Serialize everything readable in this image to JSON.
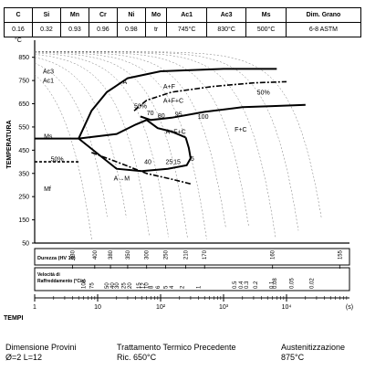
{
  "composition": {
    "headers": [
      "C",
      "Si",
      "Mn",
      "Cr",
      "Ni",
      "Mo",
      "Ac1",
      "Ac3",
      "Ms",
      "Dim. Grano"
    ],
    "values": [
      "0.16",
      "0.32",
      "0.93",
      "0.96",
      "0.98",
      "tr",
      "745°C",
      "830°C",
      "500°C",
      "6-8 ASTM"
    ]
  },
  "footer": {
    "col1_title": "Dimensione Provini",
    "col1_value": "Ø=2  L=12",
    "col2_title": "Trattamento Termico Precedente",
    "col2_value": "Ric. 650°C",
    "col3_title": "Austenitizzazione",
    "col3_value": "875°C"
  },
  "chart_data": {
    "type": "line",
    "title": "",
    "ylabel": "TEMPERATURA",
    "y_unit": "°C",
    "xlabel": "TEMPI",
    "x_unit": "(s)",
    "x_scale": "log",
    "xlim": [
      1,
      100000
    ],
    "ylim": [
      50,
      900
    ],
    "y_ticks": [
      850,
      750,
      650,
      550,
      450,
      350,
      250,
      150,
      50
    ],
    "x_tick_labels": [
      {
        "x": 1,
        "label": "1"
      },
      {
        "x": 10,
        "label": "10"
      },
      {
        "x": 100,
        "label": "10²"
      },
      {
        "x": 1000,
        "label": "10³"
      },
      {
        "x": 10000,
        "label": "10⁴"
      },
      {
        "x": 100000,
        "label": "(s)"
      }
    ],
    "hardness_row": {
      "label": "Durezza (HV 10)",
      "values": [
        {
          "x": 4,
          "label": "430"
        },
        {
          "x": 9,
          "label": "400"
        },
        {
          "x": 16,
          "label": "380"
        },
        {
          "x": 30,
          "label": "350"
        },
        {
          "x": 60,
          "label": "300"
        },
        {
          "x": 120,
          "label": "250"
        },
        {
          "x": 250,
          "label": "210"
        },
        {
          "x": 500,
          "label": "170"
        },
        {
          "x": 6000,
          "label": "160"
        },
        {
          "x": 70000,
          "label": "155"
        }
      ]
    },
    "cooling_rate_row": {
      "label": "Velocità di Raffreddamento (°C/s)",
      "values": [
        {
          "x": 6,
          "label": "100"
        },
        {
          "x": 8,
          "label": "75"
        },
        {
          "x": 14,
          "label": "50"
        },
        {
          "x": 17,
          "label": "40"
        },
        {
          "x": 20,
          "label": "30"
        },
        {
          "x": 26,
          "label": "25"
        },
        {
          "x": 32,
          "label": "20"
        },
        {
          "x": 45,
          "label": "15"
        },
        {
          "x": 52,
          "label": "12"
        },
        {
          "x": 60,
          "label": "10"
        },
        {
          "x": 70,
          "label": "8"
        },
        {
          "x": 90,
          "label": "6"
        },
        {
          "x": 120,
          "label": "5"
        },
        {
          "x": 150,
          "label": "4"
        },
        {
          "x": 220,
          "label": "2"
        },
        {
          "x": 400,
          "label": "1"
        },
        {
          "x": 1500,
          "label": "0.5"
        },
        {
          "x": 1900,
          "label": "0.4"
        },
        {
          "x": 2300,
          "label": "0.3"
        },
        {
          "x": 3200,
          "label": "0.2"
        },
        {
          "x": 5800,
          "label": "0.1"
        },
        {
          "x": 6500,
          "label": "0.08"
        },
        {
          "x": 12000,
          "label": "0.05"
        },
        {
          "x": 25000,
          "label": "0.02"
        }
      ]
    },
    "series": [
      {
        "id": "ferrite_start",
        "style": "solid",
        "points": [
          [
            5,
            500
          ],
          [
            8,
            620
          ],
          [
            14,
            700
          ],
          [
            30,
            760
          ],
          [
            100,
            790
          ],
          [
            1000,
            800
          ],
          [
            7000,
            800
          ]
        ]
      },
      {
        "id": "ferrite_end",
        "style": "dashdot",
        "points": [
          [
            38,
            620
          ],
          [
            60,
            665
          ],
          [
            150,
            700
          ],
          [
            700,
            725
          ],
          [
            3000,
            740
          ],
          [
            10000,
            745
          ]
        ]
      },
      {
        "id": "pearlite_start",
        "style": "solid",
        "points": [
          [
            48,
            595
          ],
          [
            70,
            580
          ],
          [
            150,
            590
          ],
          [
            500,
            615
          ],
          [
            2000,
            635
          ],
          [
            6000,
            640
          ],
          [
            20000,
            645
          ]
        ]
      },
      {
        "id": "bainite_start",
        "style": "solid",
        "points": [
          [
            5,
            500
          ],
          [
            20,
            520
          ],
          [
            40,
            560
          ],
          [
            60,
            580
          ],
          [
            90,
            545
          ],
          [
            150,
            530
          ],
          [
            250,
            505
          ]
        ]
      },
      {
        "id": "bainite_lower",
        "style": "solid",
        "points": [
          [
            250,
            505
          ],
          [
            280,
            460
          ],
          [
            300,
            415
          ],
          [
            260,
            385
          ],
          [
            130,
            370
          ],
          [
            50,
            360
          ],
          [
            20,
            370
          ],
          [
            5,
            500
          ]
        ]
      },
      {
        "id": "bainite_end",
        "style": "dashdot",
        "points": [
          [
            8,
            440
          ],
          [
            20,
            400
          ],
          [
            60,
            350
          ],
          [
            150,
            325
          ],
          [
            300,
            305
          ]
        ]
      },
      {
        "id": "ms_line",
        "style": "solid",
        "points": [
          [
            1,
            500
          ],
          [
            5,
            500
          ]
        ]
      },
      {
        "id": "m50_line",
        "style": "dashed",
        "points": [
          [
            1,
            400
          ],
          [
            5,
            400
          ]
        ]
      }
    ],
    "annotations": [
      {
        "x": 1.35,
        "y": 780,
        "text": "Ac3"
      },
      {
        "x": 1.35,
        "y": 740,
        "text": "Ac1"
      },
      {
        "x": 25,
        "y": 735,
        "text": "A"
      },
      {
        "x": 110,
        "y": 715,
        "text": "A+F"
      },
      {
        "x": 110,
        "y": 655,
        "text": "A+F+C"
      },
      {
        "x": 38,
        "y": 630,
        "text": "50%"
      },
      {
        "x": 3400,
        "y": 690,
        "text": "50%"
      },
      {
        "x": 60,
        "y": 600,
        "text": "70"
      },
      {
        "x": 90,
        "y": 590,
        "text": "80"
      },
      {
        "x": 170,
        "y": 595,
        "text": "95"
      },
      {
        "x": 390,
        "y": 585,
        "text": "100"
      },
      {
        "x": 120,
        "y": 520,
        "text": "A+F+C"
      },
      {
        "x": 1500,
        "y": 530,
        "text": "F+C"
      },
      {
        "x": 1.4,
        "y": 500,
        "text": "Ms"
      },
      {
        "x": 1.8,
        "y": 402,
        "text": "50%"
      },
      {
        "x": 1.4,
        "y": 275,
        "text": "Mf"
      },
      {
        "x": 55,
        "y": 390,
        "text": "40"
      },
      {
        "x": 120,
        "y": 390,
        "text": "25"
      },
      {
        "x": 160,
        "y": 390,
        "text": "15"
      },
      {
        "x": 300,
        "y": 405,
        "text": "5"
      },
      {
        "x": 18,
        "y": 320,
        "text": "A→M"
      }
    ]
  }
}
